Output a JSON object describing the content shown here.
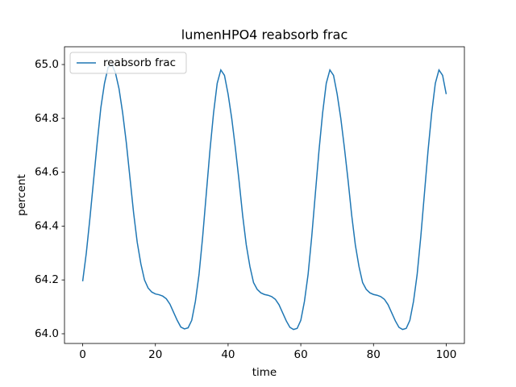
{
  "chart_data": {
    "type": "line",
    "title": "lumenHPO4 reabsorb frac",
    "xlabel": "time",
    "ylabel": "percent",
    "x": [
      0,
      1,
      2,
      3,
      4,
      5,
      6,
      7,
      8,
      9,
      10,
      11,
      12,
      13,
      14,
      15,
      16,
      17,
      18,
      19,
      20,
      21,
      22,
      23,
      24,
      25,
      26,
      27,
      28,
      29,
      30,
      31,
      32,
      33,
      34,
      35,
      36,
      37,
      38,
      39,
      40,
      41,
      42,
      43,
      44,
      45,
      46,
      47,
      48,
      49,
      50,
      51,
      52,
      53,
      54,
      55,
      56,
      57,
      58,
      59,
      60,
      61,
      62,
      63,
      64,
      65,
      66,
      67,
      68,
      69,
      70,
      71,
      72,
      73,
      74,
      75,
      76,
      77,
      78,
      79,
      80,
      81,
      82,
      83,
      84,
      85,
      86,
      87,
      88,
      89,
      90,
      91,
      92,
      93,
      94,
      95,
      96,
      97,
      98,
      99,
      100
    ],
    "series": [
      {
        "name": "reabsorb frac",
        "color": "#1f77b4",
        "values": [
          64.195,
          64.3,
          64.43,
          64.57,
          64.71,
          64.84,
          64.93,
          64.99,
          65.0,
          64.97,
          64.91,
          64.82,
          64.71,
          64.58,
          64.45,
          64.34,
          64.26,
          64.2,
          64.17,
          64.155,
          64.148,
          64.145,
          64.14,
          64.13,
          64.11,
          64.08,
          64.05,
          64.025,
          64.018,
          64.022,
          64.05,
          64.12,
          64.22,
          64.36,
          64.52,
          64.68,
          64.82,
          64.93,
          64.98,
          64.96,
          64.89,
          64.8,
          64.69,
          64.57,
          64.44,
          64.33,
          64.25,
          64.19,
          64.165,
          64.152,
          64.146,
          64.143,
          64.138,
          64.128,
          64.108,
          64.078,
          64.048,
          64.024,
          64.016,
          64.02,
          64.05,
          64.12,
          64.22,
          64.36,
          64.52,
          64.68,
          64.82,
          64.93,
          64.98,
          64.96,
          64.89,
          64.8,
          64.69,
          64.57,
          64.44,
          64.33,
          64.25,
          64.19,
          64.165,
          64.152,
          64.146,
          64.143,
          64.138,
          64.128,
          64.108,
          64.078,
          64.048,
          64.024,
          64.016,
          64.02,
          64.05,
          64.12,
          64.22,
          64.36,
          64.52,
          64.68,
          64.82,
          64.93,
          64.98,
          64.96,
          64.89
        ]
      }
    ],
    "xlim": [
      -5,
      105
    ],
    "ylim": [
      63.964,
      65.066
    ],
    "xticks": [
      0,
      20,
      40,
      60,
      80,
      100
    ],
    "yticks": [
      {
        "value": 64.0,
        "label": "64.0"
      },
      64.2,
      64.4,
      64.6,
      64.8,
      {
        "value": 65.0,
        "label": "65.0"
      }
    ],
    "legend": "upper left",
    "grid": false
  }
}
